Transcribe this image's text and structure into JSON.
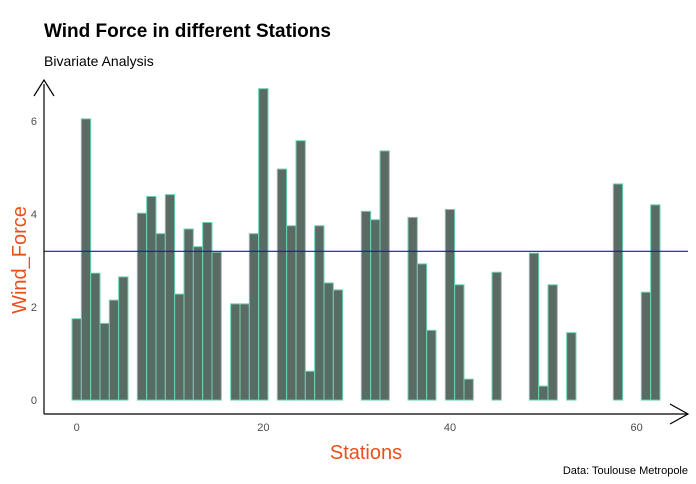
{
  "chart_data": {
    "type": "bar",
    "title": "Wind Force in different Stations",
    "subtitle": "Bivariate Analysis",
    "xlabel": "Stations",
    "ylabel": "Wind_Force",
    "caption": "Data: Toulouse Metropole",
    "xlim": [
      -3.5,
      65.5
    ],
    "ylim": [
      -0.3,
      6.8
    ],
    "x_ticks": [
      0,
      20,
      40,
      60
    ],
    "y_ticks": [
      0,
      2,
      4,
      6
    ],
    "reference_line": {
      "y": 3.2,
      "color": "#1a1aa6"
    },
    "bar_fill": "#5a6b63",
    "bar_outline": "#6fd0b5",
    "x": [
      0,
      1,
      2,
      3,
      4,
      5,
      7,
      8,
      9,
      10,
      11,
      12,
      13,
      14,
      15,
      17,
      18,
      19,
      20,
      22,
      23,
      24,
      25,
      26,
      27,
      28,
      31,
      32,
      33,
      36,
      37,
      38,
      40,
      41,
      42,
      45,
      49,
      50,
      51,
      53,
      58,
      61,
      62
    ],
    "values": [
      1.75,
      6.05,
      2.73,
      1.65,
      2.15,
      2.65,
      4.02,
      4.38,
      3.58,
      4.42,
      2.28,
      3.68,
      3.3,
      3.82,
      3.18,
      2.07,
      2.07,
      3.58,
      6.7,
      4.97,
      3.75,
      5.58,
      0.62,
      3.75,
      2.52,
      2.37,
      4.06,
      3.88,
      5.36,
      3.93,
      2.93,
      1.5,
      4.1,
      2.48,
      0.45,
      2.75,
      3.16,
      0.3,
      2.48,
      1.45,
      4.65,
      2.32,
      4.2
    ]
  }
}
